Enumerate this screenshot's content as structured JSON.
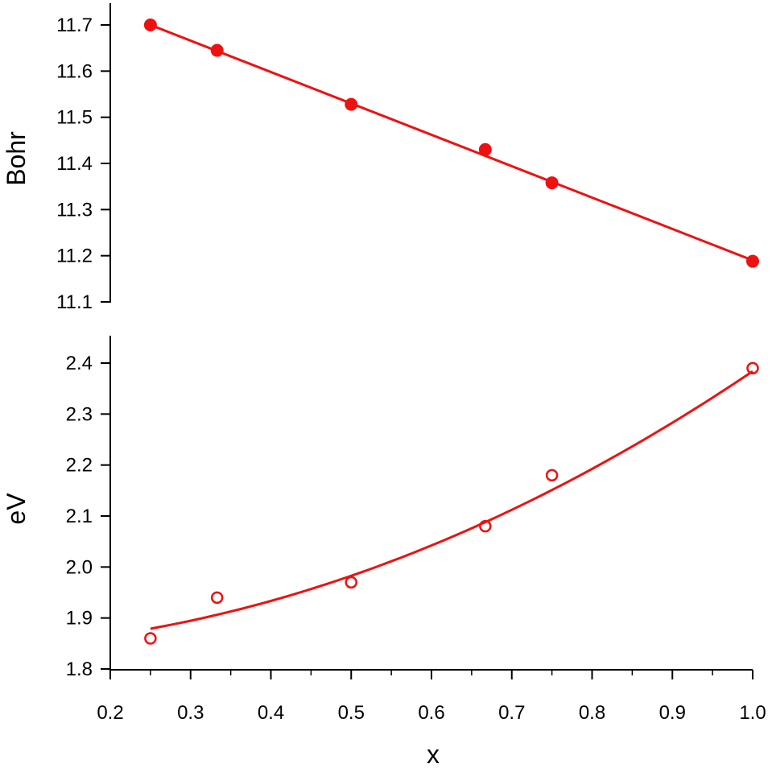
{
  "chart_data": [
    {
      "type": "scatter",
      "title": "",
      "xlabel": "",
      "ylabel": "Bohr",
      "xlim": [
        0.2,
        1.0
      ],
      "ylim": [
        11.1,
        11.7
      ],
      "y_ticks": [
        "11.1",
        "11.2",
        "11.3",
        "11.4",
        "11.5",
        "11.6",
        "11.7"
      ],
      "grid": false,
      "legend": "none",
      "color": "#ee1111",
      "marker": "filled-circle",
      "series": [
        {
          "x": [
            0.25,
            0.333,
            0.5,
            0.667,
            0.75,
            1.0
          ],
          "y": [
            11.7,
            11.645,
            11.528,
            11.43,
            11.358,
            11.188
          ]
        }
      ],
      "fit": {
        "kind": "linear",
        "x": [
          0.25,
          1.0
        ],
        "y": [
          11.7,
          11.19
        ]
      }
    },
    {
      "type": "scatter",
      "title": "",
      "xlabel": "x",
      "ylabel": "eV",
      "xlim": [
        0.2,
        1.0
      ],
      "ylim": [
        1.8,
        2.4
      ],
      "x_ticks": [
        "0.2",
        "0.3",
        "0.4",
        "0.5",
        "0.6",
        "0.7",
        "0.8",
        "0.9",
        "1.0"
      ],
      "y_ticks": [
        "1.8",
        "1.9",
        "2.0",
        "2.1",
        "2.2",
        "2.3",
        "2.4"
      ],
      "grid": false,
      "legend": "none",
      "color": "#ee1111",
      "marker": "open-circle",
      "series": [
        {
          "x": [
            0.25,
            0.333,
            0.5,
            0.667,
            0.75,
            1.0
          ],
          "y": [
            1.86,
            1.94,
            1.97,
            2.08,
            2.18,
            2.39
          ]
        }
      ],
      "fit": {
        "kind": "curve",
        "x": [
          0.25,
          0.333,
          0.5,
          0.667,
          0.75,
          1.0
        ],
        "y": [
          1.877,
          1.908,
          1.985,
          2.088,
          2.148,
          2.385
        ]
      }
    }
  ]
}
